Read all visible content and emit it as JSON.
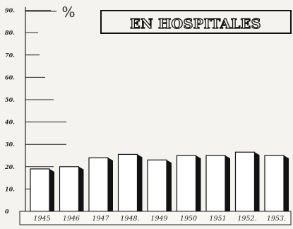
{
  "chart_data": {
    "type": "bar",
    "title": "EN HOSPITALES",
    "unit": "%",
    "categories": [
      "1945",
      "1946",
      "1947",
      "1948.",
      "1949",
      "1950",
      "1951",
      "1952.",
      "1953."
    ],
    "values": [
      19,
      20,
      24,
      25.5,
      23,
      25,
      25,
      26.5,
      25
    ],
    "yticks": [
      "0",
      "10.",
      "20.",
      "30.",
      "40.",
      "50.",
      "60.",
      "70.",
      "80.",
      "90."
    ],
    "ylim": [
      0,
      90
    ],
    "colors": {
      "bar": "#ffffff",
      "shadow": "#111111",
      "ink": "#222222",
      "paper": "#f4f3ef"
    }
  }
}
